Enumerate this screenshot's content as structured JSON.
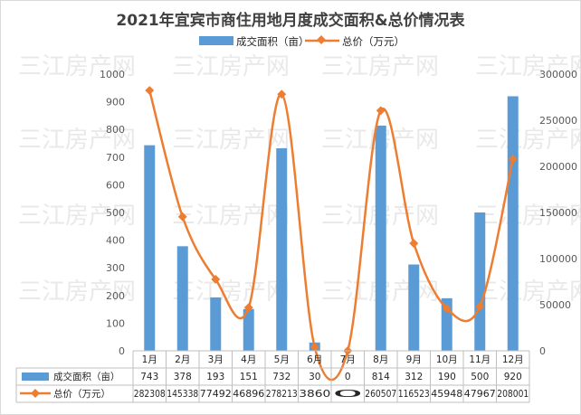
{
  "chart_data": {
    "type": "bar",
    "title": "2021年宜宾市商住用地月度成交面积&总价情况表",
    "categories": [
      "1月",
      "2月",
      "3月",
      "4月",
      "5月",
      "6月",
      "7月",
      "8月",
      "9月",
      "10月",
      "11月",
      "12月"
    ],
    "series": [
      {
        "name": "成交面积（亩）",
        "type": "bar",
        "axis": "left",
        "color": "#5b9bd5",
        "values": [
          743,
          378,
          193,
          151,
          732,
          30,
          0,
          814,
          312,
          190,
          500,
          920
        ],
        "table_labels": [
          "743",
          "378",
          "193",
          "151",
          "732",
          "30",
          "0",
          "814",
          "312",
          "190",
          "500",
          "920"
        ]
      },
      {
        "name": "总价（万元）",
        "type": "line",
        "axis": "right",
        "color": "#ed7d31",
        "values": [
          282308,
          145338,
          77492,
          46896,
          278213,
          3860,
          0,
          260507,
          116523,
          45948,
          47967,
          208001
        ],
        "table_labels": [
          "282308",
          "145338",
          "77492",
          "46896",
          "278213",
          "3860",
          "0",
          "260507",
          "116523",
          "45948",
          "47967",
          "208001"
        ]
      }
    ],
    "y_left": {
      "ylim": [
        0,
        1000
      ],
      "ticks": [
        "0",
        "100",
        "200",
        "300",
        "400",
        "500",
        "600",
        "700",
        "800",
        "900",
        "1000"
      ]
    },
    "y_right": {
      "ylim": [
        0,
        300000
      ],
      "ticks": [
        "0",
        "50000",
        "100000",
        "150000",
        "200000",
        "250000",
        "300000"
      ]
    },
    "legend_position": "top",
    "grid": false,
    "data_table": true
  },
  "watermark": "三江房产网"
}
